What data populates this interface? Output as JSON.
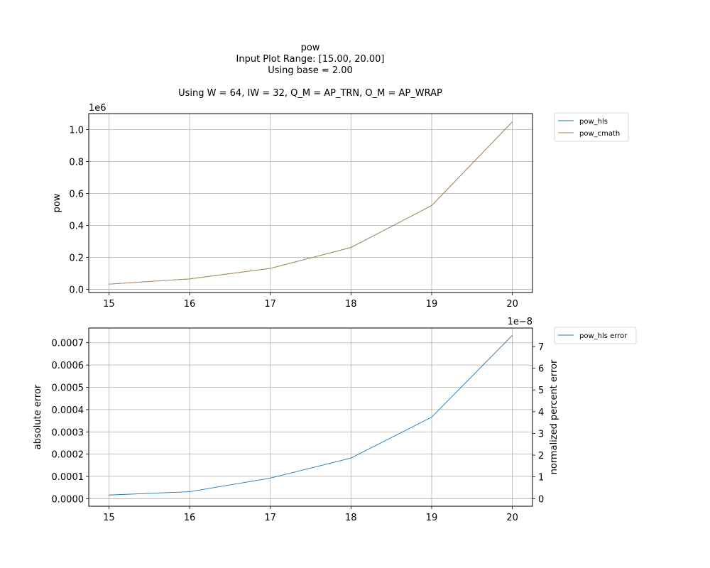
{
  "figure": {
    "title_lines": [
      "pow",
      "Input Plot Range: [15.00, 20.00]",
      "Using base = 2.00",
      "",
      "Using W = 64, IW = 32, Q_M = AP_TRN, O_M = AP_WRAP"
    ]
  },
  "chart_data": [
    {
      "type": "line",
      "xlabel": "",
      "ylabel": "pow",
      "x": [
        15,
        16,
        17,
        18,
        19,
        20
      ],
      "xlim": [
        14.75,
        20.25
      ],
      "ylim": [
        -0.0198,
        1.1
      ],
      "y_scale_label": "1e6",
      "y_scale": 1000000,
      "xticks": [
        15,
        16,
        17,
        18,
        19,
        20
      ],
      "yticks": [
        0.0,
        0.2,
        0.4,
        0.6,
        0.8,
        1.0
      ],
      "ytick_labels": [
        "0.0",
        "0.2",
        "0.4",
        "0.6",
        "0.8",
        "1.0"
      ],
      "grid": true,
      "legend_position": "outside-top-right",
      "series": [
        {
          "name": "pow_hls",
          "color": "#1f77b4",
          "values": [
            0.032768,
            0.065536,
            0.131072,
            0.262144,
            0.524288,
            1.048576
          ]
        },
        {
          "name": "pow_cmath",
          "color": "#b5864a",
          "values": [
            0.032768,
            0.065536,
            0.131072,
            0.262144,
            0.524288,
            1.048576
          ]
        }
      ]
    },
    {
      "type": "line",
      "xlabel": "",
      "ylabel": "absolute error",
      "ylabel_right": "normalized percent error",
      "x": [
        15,
        16,
        17,
        18,
        19,
        20
      ],
      "xlim": [
        14.75,
        20.25
      ],
      "ylim": [
        -3.37e-05,
        0.000766
      ],
      "y2lim": [
        -0.35,
        7.85
      ],
      "y2_scale_label": "1e−8",
      "xticks": [
        15,
        16,
        17,
        18,
        19,
        20
      ],
      "yticks": [
        0.0,
        0.0001,
        0.0002,
        0.0003,
        0.0004,
        0.0005,
        0.0006,
        0.0007
      ],
      "ytick_labels": [
        "0.0000",
        "0.0001",
        "0.0002",
        "0.0003",
        "0.0004",
        "0.0005",
        "0.0006",
        "0.0007"
      ],
      "y2ticks": [
        0,
        1,
        2,
        3,
        4,
        5,
        6,
        7
      ],
      "y2tick_labels": [
        "0",
        "1",
        "2",
        "3",
        "4",
        "5",
        "6",
        "7"
      ],
      "grid": true,
      "legend_position": "outside-top-right",
      "series": [
        {
          "name": "pow_hls error",
          "color": "#1f77b4",
          "values": [
            1.65e-05,
            3.15e-05,
            9.25e-05,
            0.0001825,
            0.000366,
            0.000733
          ]
        }
      ]
    }
  ]
}
